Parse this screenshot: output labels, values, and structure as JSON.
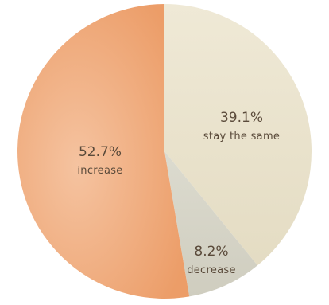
{
  "chart_data": {
    "type": "pie",
    "title": "",
    "start_angle_deg": 0,
    "direction": "clockwise",
    "slices": [
      {
        "label": "stay the same",
        "value": 39.1,
        "display": "39.1%",
        "color": "#e9e3cf"
      },
      {
        "label": "decrease",
        "value": 8.2,
        "display": "8.2%",
        "color": "#d6d5c8"
      },
      {
        "label": "increase",
        "value": 52.7,
        "display": "52.7%",
        "color": "#eda676"
      }
    ],
    "legend": "none",
    "labels_inside": true
  }
}
